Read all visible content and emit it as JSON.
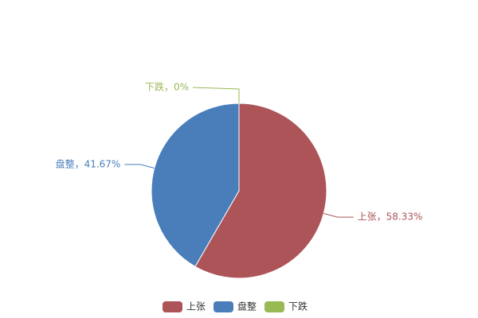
{
  "chart_data": {
    "type": "pie",
    "categories": [
      "上张",
      "盘整",
      "下跌"
    ],
    "values": [
      58.33,
      41.67,
      0
    ],
    "value_labels": [
      "上张，58.33%",
      "盘整，41.67%",
      "下跌，0%"
    ],
    "colors": [
      "#ac5457",
      "#4a7ebb",
      "#98b954"
    ]
  }
}
